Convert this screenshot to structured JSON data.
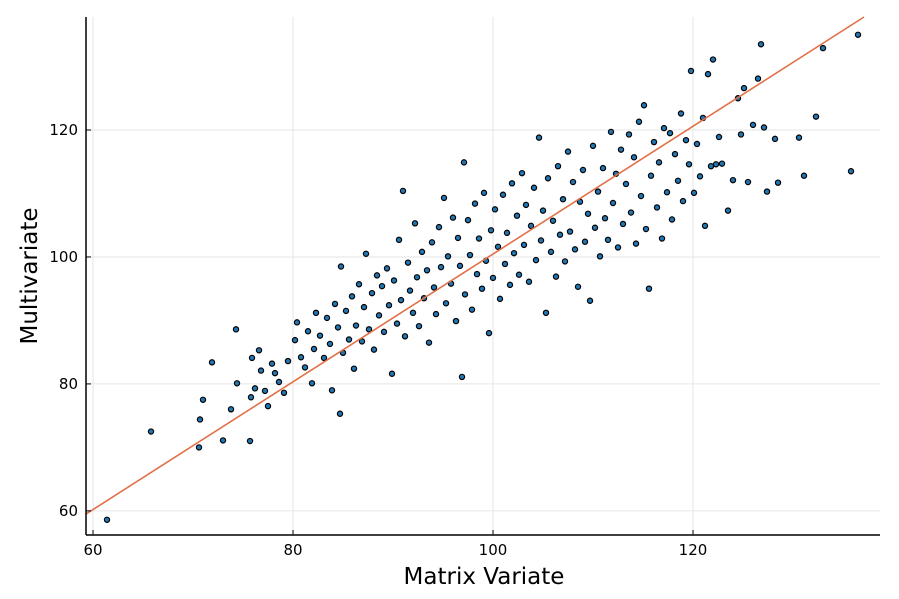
{
  "chart_data": {
    "type": "scatter",
    "title": "",
    "xlabel": "Matrix Variate",
    "ylabel": "Multivariate",
    "xlim": [
      59.3,
      138.7
    ],
    "ylim": [
      56.2,
      137.8
    ],
    "x_ticks": [
      60,
      80,
      100,
      120
    ],
    "y_ticks": [
      60,
      80,
      100,
      120
    ],
    "grid": true,
    "legend": "none",
    "colors": {
      "points": "#1f77b4",
      "line": "#e26f46"
    },
    "fit_line": {
      "x": [
        59.3,
        137.1
      ],
      "y": [
        59.5,
        137.8
      ]
    },
    "series": [
      {
        "values": [
          [
            61.4,
            58.6
          ],
          [
            65.8,
            72.5
          ],
          [
            70.6,
            70.0
          ],
          [
            70.7,
            74.4
          ],
          [
            71.0,
            77.5
          ],
          [
            71.9,
            83.4
          ],
          [
            73.0,
            71.1
          ],
          [
            73.8,
            76.0
          ],
          [
            74.3,
            88.6
          ],
          [
            74.4,
            80.1
          ],
          [
            75.7,
            71.0
          ],
          [
            75.8,
            77.9
          ],
          [
            75.9,
            84.1
          ],
          [
            76.2,
            79.3
          ],
          [
            76.6,
            85.3
          ],
          [
            76.8,
            82.1
          ],
          [
            77.2,
            78.9
          ],
          [
            77.5,
            76.5
          ],
          [
            77.9,
            83.2
          ],
          [
            78.2,
            81.7
          ],
          [
            78.6,
            80.3
          ],
          [
            79.1,
            78.6
          ],
          [
            79.5,
            83.6
          ],
          [
            80.2,
            86.9
          ],
          [
            80.4,
            89.7
          ],
          [
            80.8,
            84.2
          ],
          [
            81.2,
            82.6
          ],
          [
            81.5,
            88.3
          ],
          [
            81.9,
            80.1
          ],
          [
            82.1,
            85.5
          ],
          [
            82.3,
            91.2
          ],
          [
            82.7,
            87.6
          ],
          [
            83.1,
            84.1
          ],
          [
            83.4,
            90.4
          ],
          [
            83.7,
            86.3
          ],
          [
            83.9,
            79.0
          ],
          [
            84.2,
            92.6
          ],
          [
            84.5,
            88.9
          ],
          [
            84.7,
            75.3
          ],
          [
            84.8,
            98.5
          ],
          [
            85.0,
            84.9
          ],
          [
            85.3,
            91.5
          ],
          [
            85.6,
            87.0
          ],
          [
            85.9,
            93.8
          ],
          [
            86.1,
            82.4
          ],
          [
            86.3,
            89.2
          ],
          [
            86.6,
            95.7
          ],
          [
            86.9,
            86.7
          ],
          [
            87.1,
            92.1
          ],
          [
            87.3,
            100.5
          ],
          [
            87.6,
            88.6
          ],
          [
            87.9,
            94.3
          ],
          [
            88.1,
            85.4
          ],
          [
            88.4,
            97.1
          ],
          [
            88.6,
            90.8
          ],
          [
            88.9,
            95.4
          ],
          [
            89.1,
            88.2
          ],
          [
            89.4,
            98.2
          ],
          [
            89.6,
            92.4
          ],
          [
            89.9,
            81.6
          ],
          [
            90.1,
            96.3
          ],
          [
            90.4,
            89.5
          ],
          [
            90.6,
            102.7
          ],
          [
            90.8,
            93.2
          ],
          [
            91.0,
            110.4
          ],
          [
            91.2,
            87.5
          ],
          [
            91.5,
            99.1
          ],
          [
            91.7,
            94.7
          ],
          [
            92.0,
            91.2
          ],
          [
            92.2,
            105.3
          ],
          [
            92.4,
            96.8
          ],
          [
            92.6,
            89.1
          ],
          [
            92.9,
            100.8
          ],
          [
            93.1,
            93.5
          ],
          [
            93.4,
            97.9
          ],
          [
            93.6,
            86.5
          ],
          [
            93.9,
            102.3
          ],
          [
            94.1,
            95.2
          ],
          [
            94.3,
            91.0
          ],
          [
            94.6,
            104.7
          ],
          [
            94.8,
            98.4
          ],
          [
            95.1,
            109.3
          ],
          [
            95.3,
            92.7
          ],
          [
            95.5,
            100.1
          ],
          [
            95.8,
            95.8
          ],
          [
            96.0,
            106.2
          ],
          [
            96.3,
            89.9
          ],
          [
            96.5,
            103.0
          ],
          [
            96.7,
            98.6
          ],
          [
            96.9,
            81.1
          ],
          [
            97.1,
            114.9
          ],
          [
            97.2,
            94.1
          ],
          [
            97.5,
            105.8
          ],
          [
            97.7,
            100.3
          ],
          [
            97.9,
            91.7
          ],
          [
            98.2,
            108.4
          ],
          [
            98.4,
            97.3
          ],
          [
            98.6,
            102.9
          ],
          [
            98.9,
            95.0
          ],
          [
            99.1,
            110.1
          ],
          [
            99.3,
            99.4
          ],
          [
            99.6,
            88.0
          ],
          [
            99.8,
            104.2
          ],
          [
            100.0,
            96.7
          ],
          [
            100.2,
            107.5
          ],
          [
            100.5,
            101.6
          ],
          [
            100.7,
            93.4
          ],
          [
            101.0,
            109.8
          ],
          [
            101.2,
            98.9
          ],
          [
            101.4,
            103.8
          ],
          [
            101.7,
            95.6
          ],
          [
            101.9,
            111.6
          ],
          [
            102.1,
            100.6
          ],
          [
            102.4,
            106.5
          ],
          [
            102.6,
            97.2
          ],
          [
            102.9,
            113.2
          ],
          [
            103.1,
            101.9
          ],
          [
            103.3,
            108.2
          ],
          [
            103.6,
            96.1
          ],
          [
            103.8,
            104.9
          ],
          [
            104.1,
            110.9
          ],
          [
            104.3,
            99.5
          ],
          [
            104.6,
            118.8
          ],
          [
            104.8,
            102.6
          ],
          [
            105.0,
            107.3
          ],
          [
            105.3,
            91.2
          ],
          [
            105.5,
            112.4
          ],
          [
            105.8,
            100.8
          ],
          [
            106.0,
            105.7
          ],
          [
            106.3,
            96.9
          ],
          [
            106.5,
            114.3
          ],
          [
            106.7,
            103.5
          ],
          [
            107.0,
            109.1
          ],
          [
            107.2,
            99.3
          ],
          [
            107.5,
            116.6
          ],
          [
            107.7,
            104.0
          ],
          [
            108.0,
            111.8
          ],
          [
            108.2,
            101.2
          ],
          [
            108.5,
            95.3
          ],
          [
            108.7,
            108.7
          ],
          [
            109.0,
            113.7
          ],
          [
            109.2,
            102.4
          ],
          [
            109.5,
            106.8
          ],
          [
            109.7,
            93.1
          ],
          [
            110.0,
            117.5
          ],
          [
            110.2,
            104.6
          ],
          [
            110.5,
            110.3
          ],
          [
            110.7,
            100.1
          ],
          [
            111.0,
            114.0
          ],
          [
            111.2,
            106.1
          ],
          [
            111.5,
            102.7
          ],
          [
            111.8,
            119.7
          ],
          [
            112.0,
            108.5
          ],
          [
            112.3,
            113.1
          ],
          [
            112.5,
            101.5
          ],
          [
            112.8,
            116.9
          ],
          [
            113.0,
            105.2
          ],
          [
            113.3,
            111.5
          ],
          [
            113.6,
            119.3
          ],
          [
            113.8,
            107.0
          ],
          [
            114.1,
            115.7
          ],
          [
            114.3,
            102.1
          ],
          [
            114.6,
            121.3
          ],
          [
            114.8,
            109.6
          ],
          [
            115.1,
            123.9
          ],
          [
            115.3,
            104.4
          ],
          [
            115.6,
            95.0
          ],
          [
            115.8,
            112.8
          ],
          [
            116.1,
            118.1
          ],
          [
            116.4,
            107.8
          ],
          [
            116.6,
            114.9
          ],
          [
            116.9,
            102.9
          ],
          [
            117.1,
            120.3
          ],
          [
            117.4,
            110.2
          ],
          [
            117.7,
            119.5
          ],
          [
            117.9,
            105.9
          ],
          [
            118.2,
            116.2
          ],
          [
            118.5,
            112.0
          ],
          [
            118.8,
            122.6
          ],
          [
            119.0,
            108.8
          ],
          [
            119.3,
            118.4
          ],
          [
            119.6,
            114.6
          ],
          [
            119.8,
            129.3
          ],
          [
            120.1,
            110.1
          ],
          [
            120.4,
            117.8
          ],
          [
            120.7,
            112.7
          ],
          [
            121.0,
            121.9
          ],
          [
            121.2,
            104.9
          ],
          [
            121.5,
            128.8
          ],
          [
            121.8,
            114.3
          ],
          [
            122.0,
            131.1
          ],
          [
            122.3,
            114.6
          ],
          [
            122.6,
            118.9
          ],
          [
            122.9,
            114.7
          ],
          [
            123.5,
            107.3
          ],
          [
            124.0,
            112.1
          ],
          [
            124.5,
            125.0
          ],
          [
            124.8,
            119.3
          ],
          [
            125.1,
            126.6
          ],
          [
            125.5,
            111.8
          ],
          [
            126.0,
            120.8
          ],
          [
            126.5,
            128.1
          ],
          [
            126.8,
            133.5
          ],
          [
            127.1,
            120.4
          ],
          [
            127.4,
            110.3
          ],
          [
            128.2,
            118.6
          ],
          [
            128.5,
            111.7
          ],
          [
            130.6,
            118.8
          ],
          [
            131.1,
            112.8
          ],
          [
            132.3,
            122.1
          ],
          [
            133.0,
            132.9
          ],
          [
            135.8,
            113.5
          ],
          [
            136.5,
            135.0
          ]
        ]
      }
    ]
  }
}
